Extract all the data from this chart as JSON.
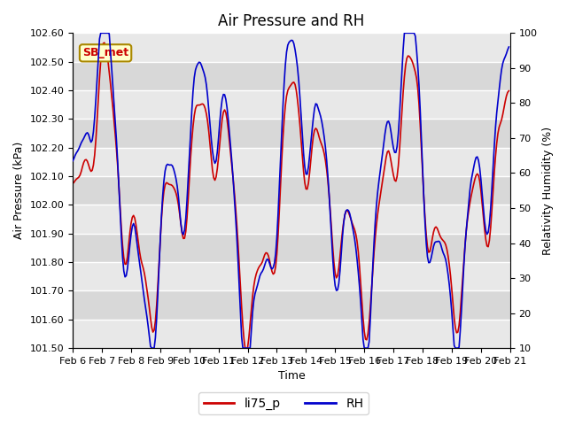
{
  "title": "Air Pressure and RH",
  "xlabel": "Time",
  "ylabel_left": "Air Pressure (kPa)",
  "ylabel_right": "Relativity Humidity (%)",
  "ylim_left": [
    101.5,
    102.6
  ],
  "ylim_right": [
    10,
    100
  ],
  "yticks_left": [
    101.5,
    101.6,
    101.7,
    101.8,
    101.9,
    102.0,
    102.1,
    102.2,
    102.3,
    102.4,
    102.5,
    102.6
  ],
  "yticks_right": [
    10,
    20,
    30,
    40,
    50,
    60,
    70,
    80,
    90,
    100
  ],
  "xtick_labels": [
    "Feb 6",
    "Feb 7",
    "Feb 8",
    "Feb 9",
    "Feb 10",
    "Feb 11",
    "Feb 12",
    "Feb 13",
    "Feb 14",
    "Feb 15",
    "Feb 16",
    "Feb 17",
    "Feb 18",
    "Feb 19",
    "Feb 20",
    "Feb 21"
  ],
  "color_pressure": "#cc0000",
  "color_rh": "#0000cc",
  "legend_entries": [
    "li75_p",
    "RH"
  ],
  "annotation_text": "SB_met",
  "annotation_bg": "#ffffcc",
  "annotation_edge": "#aa8800",
  "bg_color": "#e8e8e8",
  "band_color_light": "#e0e0e0",
  "band_color_dark": "#d0d0d0",
  "grid_color": "#ffffff",
  "title_fontsize": 12,
  "label_fontsize": 9,
  "tick_fontsize": 8
}
